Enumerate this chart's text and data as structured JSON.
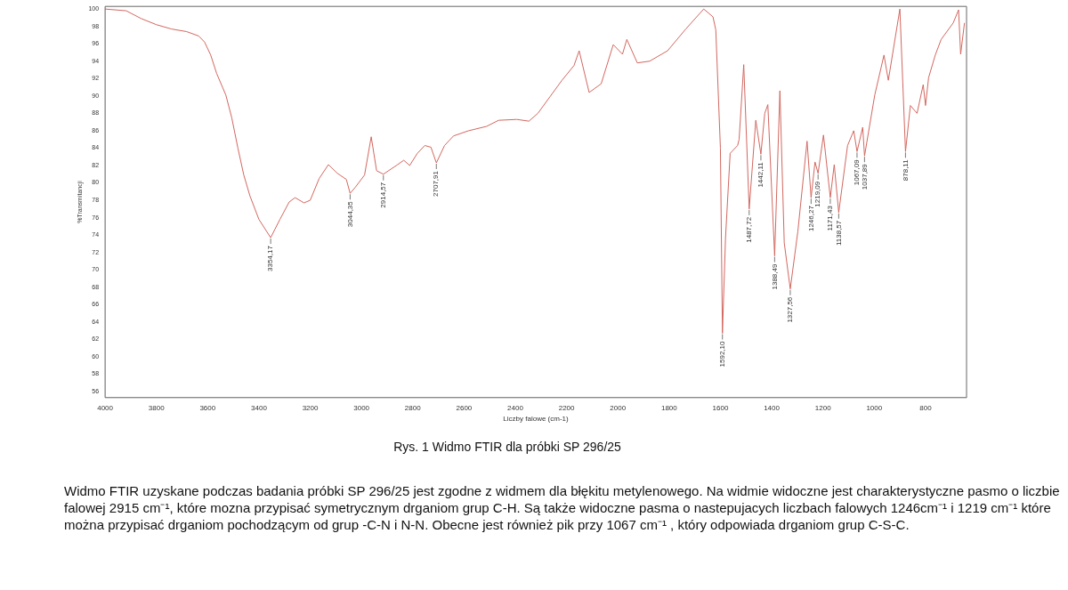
{
  "chart_data": {
    "type": "line",
    "xlabel": "Liczby falowe (cm-1)",
    "ylabel": "%Transmitancji",
    "xlim": [
      4000,
      640
    ],
    "xticks": [
      4000,
      3800,
      3600,
      3400,
      3200,
      3000,
      2800,
      2600,
      2400,
      2200,
      2000,
      1800,
      1600,
      1400,
      1200,
      1000,
      800
    ],
    "ylim": [
      55.3,
      100.3
    ],
    "yticks": [
      56,
      58,
      60,
      62,
      64,
      66,
      68,
      70,
      72,
      74,
      76,
      78,
      80,
      82,
      84,
      86,
      88,
      90,
      92,
      94,
      96,
      98,
      100
    ],
    "grid": false,
    "legend": false,
    "marker": "none",
    "line_style": "solid",
    "series": [
      {
        "color": "#d2675f",
        "x": [
          4000,
          3918,
          3859,
          3800,
          3741,
          3682,
          3635,
          3612,
          3588,
          3565,
          3529,
          3506,
          3482,
          3459,
          3435,
          3400,
          3354.17,
          3318,
          3282,
          3259,
          3224,
          3200,
          3165,
          3129,
          3094,
          3059,
          3044.35,
          3024,
          2988,
          2962,
          2941,
          2914.57,
          2859,
          2835,
          2812,
          2782,
          2753,
          2729,
          2707.91,
          2676,
          2641,
          2582,
          2512,
          2465,
          2394,
          2347,
          2312,
          2265,
          2218,
          2171,
          2151,
          2112,
          2065,
          2018,
          1982,
          1965,
          1924,
          1876,
          1806,
          1735,
          1665,
          1629,
          1618,
          1600,
          1592.1,
          1580,
          1562,
          1533,
          1527,
          1509,
          1487.72,
          1462,
          1442.11,
          1427,
          1415,
          1388.49,
          1368,
          1351,
          1327.56,
          1298,
          1262,
          1246.27,
          1231,
          1219.09,
          1198,
          1171.43,
          1156,
          1138.57,
          1104,
          1080,
          1067.09,
          1045,
          1037.89,
          998,
          962,
          945,
          900,
          878.11,
          859,
          833,
          809,
          800,
          788,
          762,
          739,
          692,
          671,
          663,
          648
        ],
        "values": [
          100,
          99.8,
          98.9,
          98.2,
          97.7,
          97.4,
          96.9,
          96.2,
          94.7,
          92.6,
          90.1,
          87.5,
          84,
          80.9,
          78.5,
          75.8,
          73.7,
          75.8,
          77.8,
          78.3,
          77.7,
          78,
          80.5,
          82.1,
          81.1,
          80.4,
          78.8,
          79.5,
          80.9,
          85.3,
          81.4,
          81,
          82.1,
          82.6,
          82,
          83.4,
          84.3,
          84.1,
          82.3,
          84.3,
          85.4,
          86,
          86.5,
          87.2,
          87.3,
          87.1,
          88,
          89.9,
          91.8,
          93.5,
          95.2,
          90.4,
          91.4,
          95.9,
          94.8,
          96.5,
          93.8,
          94,
          95.2,
          97.7,
          100,
          99.1,
          97.6,
          84,
          62.7,
          73.7,
          83.4,
          84.3,
          85,
          93.6,
          77,
          87.2,
          83.3,
          88,
          89,
          71.6,
          90.6,
          73.1,
          67.8,
          74.4,
          84.8,
          78.3,
          82.4,
          81.1,
          85.5,
          78.3,
          82.1,
          76.6,
          84.3,
          86,
          83.6,
          86.4,
          83.1,
          90.1,
          94.7,
          91.8,
          100,
          83.6,
          88.9,
          88,
          91.3,
          88.9,
          92.1,
          94.7,
          96.5,
          98.4,
          99.9,
          94.8,
          98.4
        ]
      }
    ],
    "annotations": [
      {
        "text": "3354,17",
        "x": 3354.17,
        "y": 73.7
      },
      {
        "text": "3044,35",
        "x": 3044.35,
        "y": 78.8
      },
      {
        "text": "2914,57",
        "x": 2914.57,
        "y": 81
      },
      {
        "text": "2707,91",
        "x": 2707.91,
        "y": 82.3
      },
      {
        "text": "1592,10",
        "x": 1592.1,
        "y": 62.7
      },
      {
        "text": "1487,72",
        "x": 1487.72,
        "y": 77
      },
      {
        "text": "1442,11",
        "x": 1442.11,
        "y": 83.3
      },
      {
        "text": "1388,49",
        "x": 1388.49,
        "y": 71.6
      },
      {
        "text": "1327,56",
        "x": 1327.56,
        "y": 67.8
      },
      {
        "text": "1246,27",
        "x": 1246.27,
        "y": 78.3
      },
      {
        "text": "1219,09",
        "x": 1219.09,
        "y": 81.1
      },
      {
        "text": "1171,43",
        "x": 1171.43,
        "y": 78.3
      },
      {
        "text": "1138,57",
        "x": 1138.57,
        "y": 76.6
      },
      {
        "text": "1067,09",
        "x": 1067.09,
        "y": 83.6
      },
      {
        "text": "1037,89",
        "x": 1037.89,
        "y": 83.1
      },
      {
        "text": "878,11",
        "x": 878.11,
        "y": 83.6
      },
      "Rys. 1 Widmo FTIR dla próbki SP 296/25",
      "Widmo FTIR uzyskane podczas badania próbki SP 296/25 jest zgodne z widmem dla błękitu metylenowego. Na widmie widoczne jest charakterystyczne pasmo o liczbie falowej 2915 cm⁻¹, które mozna przypisać symetrycznym drganiom grup C-H. Są także widoczne pasma o nastepujacych liczbach falowych 1246cm⁻¹ i 1219 cm⁻¹ które można przypisać drganiom pochodzącym od grup -C-N i N-N. Obecne jest również pik przy 1067 cm⁻¹ , który odpowiada drganiom grup C-S-C."
    ]
  }
}
